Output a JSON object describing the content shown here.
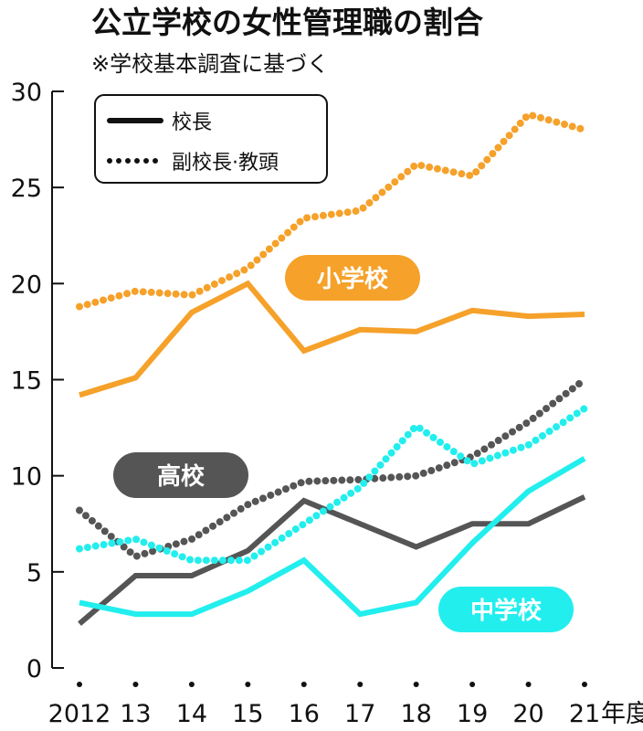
{
  "chart_data": {
    "type": "line",
    "title": "公立学校の女性管理職の割合",
    "subtitle": "※学校基本調査に基づく",
    "x": [
      "2012",
      "13",
      "14",
      "15",
      "16",
      "17",
      "18",
      "19",
      "20",
      "21"
    ],
    "x_unit": "年度",
    "ylim": [
      0,
      30
    ],
    "yticks": [
      "0",
      "5",
      "10",
      "15",
      "20",
      "25",
      "30"
    ],
    "grid": false,
    "legend": {
      "position": "top-left",
      "entries": [
        {
          "style": "solid",
          "label": "校長"
        },
        {
          "style": "dotted",
          "label": "副校長·教頭"
        }
      ]
    },
    "groups": [
      {
        "label": "小学校",
        "color": "#f5a12a",
        "series": [
          {
            "name": "校長",
            "style": "solid",
            "values": [
              14.2,
              15.1,
              18.5,
              20.0,
              16.5,
              17.6,
              17.5,
              18.6,
              18.3,
              18.4
            ]
          },
          {
            "name": "副校長·教頭",
            "style": "dotted",
            "values": [
              18.8,
              19.6,
              19.4,
              20.8,
              23.4,
              23.8,
              26.2,
              25.6,
              28.8,
              28.0
            ]
          }
        ]
      },
      {
        "label": "高校",
        "color": "#555555",
        "series": [
          {
            "name": "校長",
            "style": "solid",
            "values": [
              2.3,
              4.8,
              4.8,
              6.1,
              8.7,
              7.5,
              6.3,
              7.5,
              7.5,
              8.9
            ]
          },
          {
            "name": "副校長·教頭",
            "style": "dotted",
            "values": [
              8.2,
              5.8,
              6.7,
              8.5,
              9.7,
              9.8,
              10.0,
              11.0,
              12.8,
              15.0
            ]
          }
        ]
      },
      {
        "label": "中学校",
        "color": "#22eeee",
        "series": [
          {
            "name": "校長",
            "style": "solid",
            "values": [
              3.4,
              2.8,
              2.8,
              4.0,
              5.6,
              2.8,
              3.4,
              6.5,
              9.2,
              10.9
            ]
          },
          {
            "name": "副校長·教頭",
            "style": "dotted",
            "values": [
              6.2,
              6.7,
              5.6,
              5.6,
              7.5,
              9.4,
              12.6,
              10.6,
              11.6,
              13.5
            ]
          }
        ]
      }
    ]
  }
}
